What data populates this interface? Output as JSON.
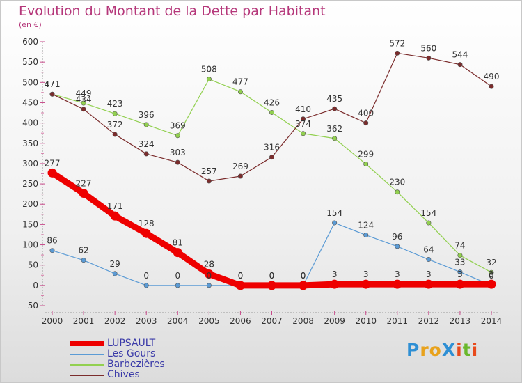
{
  "header": {
    "title": "Evolution du Montant de la Dette par Habitant",
    "unit": "(en €)"
  },
  "brand": {
    "text": "ProXiti",
    "letters": [
      {
        "ch": "P",
        "color": "#2e8fd4"
      },
      {
        "ch": "r",
        "color": "#e8a21c"
      },
      {
        "ch": "o",
        "color": "#e8a21c"
      },
      {
        "ch": "X",
        "color": "#2e8fd4"
      },
      {
        "ch": "i",
        "color": "#e84a1c"
      },
      {
        "ch": "t",
        "color": "#6ab82c"
      },
      {
        "ch": "i",
        "color": "#e84a1c"
      }
    ]
  },
  "chart_data": {
    "type": "line",
    "title": "Evolution du Montant de la Dette par Habitant",
    "subtitle": "(en €)",
    "x": [
      "2000",
      "2001",
      "2002",
      "2003",
      "2004",
      "2005",
      "2006",
      "2007",
      "2008",
      "2009",
      "2010",
      "2011",
      "2012",
      "2013",
      "2014"
    ],
    "y_ticks": [
      -50,
      0,
      50,
      100,
      150,
      200,
      250,
      300,
      350,
      400,
      450,
      500,
      550,
      600
    ],
    "ylim": [
      -50,
      600
    ],
    "grid": false,
    "legend_position": "bottom-left",
    "series": [
      {
        "name": "LUPSAULT",
        "color": "#ee0000",
        "values": [
          277,
          227,
          171,
          128,
          81,
          28,
          0,
          0,
          0,
          3,
          3,
          3,
          3,
          3,
          3
        ],
        "labels": [
          "277",
          "227",
          "171",
          "128",
          "81",
          "28",
          "0",
          "0",
          "0",
          "3",
          "3",
          "3",
          "3",
          "3",
          "3"
        ]
      },
      {
        "name": "Les Gours",
        "color": "#5b9bd5",
        "values": [
          86,
          62,
          29,
          0,
          0,
          0,
          0,
          0,
          0,
          154,
          124,
          96,
          64,
          33,
          0
        ],
        "labels": [
          "86",
          "62",
          "29",
          "0",
          "0",
          "0",
          "0",
          "0",
          "0",
          "154",
          "124",
          "96",
          "64",
          "33",
          "0"
        ]
      },
      {
        "name": "Barbezières",
        "color": "#92d050",
        "values": [
          471,
          449,
          423,
          396,
          369,
          508,
          477,
          426,
          374,
          362,
          299,
          230,
          154,
          74,
          32
        ],
        "labels": [
          "471",
          "449",
          "423",
          "396",
          "369",
          "508",
          "477",
          "426",
          "374",
          "362",
          "299",
          "230",
          "154",
          "74",
          "32"
        ]
      },
      {
        "name": "Chives",
        "color": "#7b2c2c",
        "values": [
          471,
          434,
          372,
          324,
          303,
          257,
          269,
          316,
          410,
          435,
          400,
          572,
          560,
          544,
          490
        ],
        "labels": [
          "471",
          "434",
          "372",
          "324",
          "303",
          "257",
          "269",
          "316",
          "410",
          "435",
          "400",
          "572",
          "560",
          "544",
          "490"
        ]
      }
    ]
  }
}
